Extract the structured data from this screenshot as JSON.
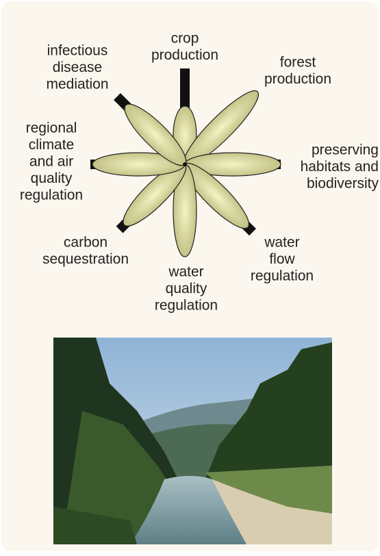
{
  "nodes": [
    {
      "lines": [
        "crop",
        "production"
      ]
    },
    {
      "lines": [
        "forest",
        "production"
      ]
    },
    {
      "lines": [
        "preserving",
        "habitats and",
        "biodiversity"
      ]
    },
    {
      "lines": [
        "water",
        "flow",
        "regulation"
      ]
    },
    {
      "lines": [
        "water",
        "quality",
        "regulation"
      ]
    },
    {
      "lines": [
        "carbon",
        "sequestration"
      ]
    },
    {
      "lines": [
        "regional",
        "climate",
        "and air",
        "quality",
        "regulation"
      ]
    },
    {
      "lines": [
        "infectious",
        "disease",
        "mediation"
      ]
    }
  ]
}
